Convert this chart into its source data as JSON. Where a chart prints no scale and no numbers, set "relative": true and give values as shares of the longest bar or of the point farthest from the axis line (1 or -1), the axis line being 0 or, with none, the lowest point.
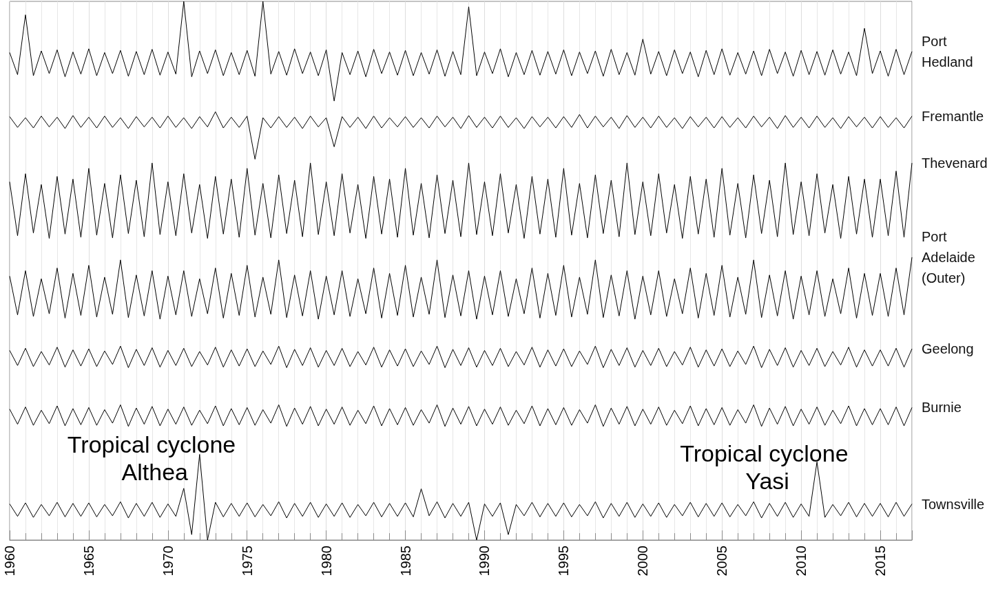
{
  "chart_data": {
    "type": "line",
    "relative": true,
    "grid": "x",
    "marker": "none",
    "line_style": "solid",
    "xlim": [
      1960,
      2017
    ],
    "xticks": [
      1960,
      1965,
      1970,
      1975,
      1980,
      1985,
      1990,
      1995,
      2000,
      2005,
      2010,
      2015
    ],
    "x": [
      1960,
      1960.5,
      1961,
      1961.5,
      1962,
      1962.5,
      1963,
      1963.5,
      1964,
      1964.5,
      1965,
      1965.5,
      1966,
      1966.5,
      1967,
      1967.5,
      1968,
      1968.5,
      1969,
      1969.5,
      1970,
      1970.5,
      1971,
      1971.5,
      1972,
      1972.5,
      1973,
      1973.5,
      1974,
      1974.5,
      1975,
      1975.5,
      1976,
      1976.5,
      1977,
      1977.5,
      1978,
      1978.5,
      1979,
      1979.5,
      1980,
      1980.5,
      1981,
      1981.5,
      1982,
      1982.5,
      1983,
      1983.5,
      1984,
      1984.5,
      1985,
      1985.5,
      1986,
      1986.5,
      1987,
      1987.5,
      1988,
      1988.5,
      1989,
      1989.5,
      1990,
      1990.5,
      1991,
      1991.5,
      1992,
      1992.5,
      1993,
      1993.5,
      1994,
      1994.5,
      1995,
      1995.5,
      1996,
      1996.5,
      1997,
      1997.5,
      1998,
      1998.5,
      1999,
      1999.5,
      2000,
      2000.5,
      2001,
      2001.5,
      2002,
      2002.5,
      2003,
      2003.5,
      2004,
      2004.5,
      2005,
      2005.5,
      2006,
      2006.5,
      2007,
      2007.5,
      2008,
      2008.5,
      2009,
      2009.5,
      2010,
      2010.5,
      2011,
      2011.5,
      2012,
      2012.5,
      2013,
      2013.5,
      2014,
      2014.5,
      2015,
      2015.5,
      2016,
      2016.5,
      2017
    ],
    "series": [
      {
        "name": "Port Hedland",
        "color": "#000000",
        "values": [
          0.905,
          0.864,
          0.975,
          0.862,
          0.908,
          0.866,
          0.91,
          0.86,
          0.906,
          0.865,
          0.912,
          0.862,
          0.905,
          0.866,
          0.909,
          0.861,
          0.907,
          0.864,
          0.911,
          0.863,
          0.906,
          0.865,
          1.0,
          0.86,
          0.908,
          0.866,
          0.91,
          0.862,
          0.905,
          0.864,
          0.909,
          0.861,
          1.0,
          0.865,
          0.907,
          0.863,
          0.912,
          0.866,
          0.906,
          0.862,
          0.91,
          0.815,
          0.905,
          0.864,
          0.908,
          0.86,
          0.911,
          0.866,
          0.906,
          0.863,
          0.909,
          0.862,
          0.905,
          0.865,
          0.91,
          0.861,
          0.907,
          0.864,
          0.99,
          0.862,
          0.906,
          0.866,
          0.912,
          0.86,
          0.905,
          0.864,
          0.909,
          0.863,
          0.907,
          0.865,
          0.91,
          0.862,
          0.906,
          0.866,
          0.908,
          0.861,
          0.911,
          0.864,
          0.905,
          0.863,
          0.93,
          0.865,
          0.907,
          0.862,
          0.91,
          0.866,
          0.906,
          0.86,
          0.909,
          0.864,
          0.912,
          0.863,
          0.905,
          0.865,
          0.908,
          0.862,
          0.911,
          0.866,
          0.906,
          0.861,
          0.909,
          0.864,
          0.907,
          0.863,
          0.91,
          0.865,
          0.906,
          0.862,
          0.95,
          0.866,
          0.908,
          0.861,
          0.911,
          0.864,
          0.907
        ]
      },
      {
        "name": "Fremantle",
        "color": "#000000",
        "values": [
          0.786,
          0.766,
          0.784,
          0.765,
          0.787,
          0.767,
          0.785,
          0.764,
          0.788,
          0.766,
          0.785,
          0.765,
          0.787,
          0.766,
          0.784,
          0.764,
          0.786,
          0.767,
          0.785,
          0.765,
          0.787,
          0.766,
          0.784,
          0.764,
          0.786,
          0.767,
          0.795,
          0.765,
          0.785,
          0.766,
          0.787,
          0.707,
          0.784,
          0.765,
          0.786,
          0.766,
          0.785,
          0.764,
          0.787,
          0.767,
          0.784,
          0.73,
          0.786,
          0.766,
          0.785,
          0.764,
          0.787,
          0.765,
          0.784,
          0.767,
          0.786,
          0.766,
          0.784,
          0.765,
          0.787,
          0.767,
          0.785,
          0.764,
          0.788,
          0.766,
          0.785,
          0.765,
          0.787,
          0.766,
          0.784,
          0.764,
          0.786,
          0.767,
          0.785,
          0.765,
          0.786,
          0.766,
          0.79,
          0.765,
          0.787,
          0.767,
          0.785,
          0.764,
          0.788,
          0.766,
          0.785,
          0.765,
          0.787,
          0.766,
          0.784,
          0.764,
          0.786,
          0.767,
          0.785,
          0.765,
          0.786,
          0.766,
          0.784,
          0.765,
          0.787,
          0.767,
          0.785,
          0.764,
          0.788,
          0.766,
          0.785,
          0.765,
          0.787,
          0.766,
          0.784,
          0.764,
          0.786,
          0.767,
          0.785,
          0.765,
          0.786,
          0.766,
          0.784,
          0.765,
          0.787
        ]
      },
      {
        "name": "Thevenard",
        "color": "#000000",
        "values": [
          0.665,
          0.565,
          0.68,
          0.57,
          0.66,
          0.56,
          0.675,
          0.568,
          0.67,
          0.562,
          0.69,
          0.566,
          0.662,
          0.561,
          0.678,
          0.569,
          0.668,
          0.563,
          0.7,
          0.567,
          0.665,
          0.565,
          0.68,
          0.57,
          0.66,
          0.56,
          0.675,
          0.568,
          0.67,
          0.562,
          0.69,
          0.566,
          0.662,
          0.561,
          0.678,
          0.569,
          0.668,
          0.563,
          0.7,
          0.567,
          0.665,
          0.565,
          0.68,
          0.57,
          0.66,
          0.56,
          0.675,
          0.568,
          0.67,
          0.562,
          0.69,
          0.566,
          0.662,
          0.561,
          0.678,
          0.569,
          0.668,
          0.563,
          0.7,
          0.567,
          0.665,
          0.565,
          0.68,
          0.57,
          0.66,
          0.56,
          0.675,
          0.568,
          0.67,
          0.562,
          0.69,
          0.566,
          0.662,
          0.561,
          0.678,
          0.569,
          0.668,
          0.563,
          0.7,
          0.567,
          0.665,
          0.565,
          0.68,
          0.57,
          0.66,
          0.56,
          0.675,
          0.568,
          0.67,
          0.562,
          0.69,
          0.566,
          0.662,
          0.561,
          0.678,
          0.569,
          0.668,
          0.563,
          0.7,
          0.567,
          0.665,
          0.565,
          0.68,
          0.57,
          0.66,
          0.56,
          0.675,
          0.568,
          0.67,
          0.562,
          0.67,
          0.565,
          0.685,
          0.562,
          0.7
        ]
      },
      {
        "name": "Port Adelaide (Outer)",
        "color": "#000000",
        "values": [
          0.49,
          0.418,
          0.5,
          0.415,
          0.485,
          0.42,
          0.505,
          0.412,
          0.495,
          0.417,
          0.51,
          0.414,
          0.488,
          0.419,
          0.52,
          0.413,
          0.492,
          0.416,
          0.5,
          0.41,
          0.49,
          0.418,
          0.5,
          0.415,
          0.485,
          0.42,
          0.505,
          0.412,
          0.495,
          0.417,
          0.51,
          0.414,
          0.488,
          0.419,
          0.52,
          0.413,
          0.492,
          0.416,
          0.5,
          0.41,
          0.49,
          0.418,
          0.5,
          0.415,
          0.485,
          0.42,
          0.505,
          0.412,
          0.495,
          0.417,
          0.51,
          0.414,
          0.488,
          0.419,
          0.52,
          0.413,
          0.492,
          0.416,
          0.5,
          0.41,
          0.49,
          0.418,
          0.5,
          0.415,
          0.485,
          0.42,
          0.505,
          0.412,
          0.495,
          0.417,
          0.51,
          0.414,
          0.488,
          0.419,
          0.52,
          0.413,
          0.492,
          0.416,
          0.5,
          0.41,
          0.49,
          0.418,
          0.5,
          0.415,
          0.485,
          0.42,
          0.505,
          0.412,
          0.495,
          0.417,
          0.51,
          0.414,
          0.488,
          0.419,
          0.52,
          0.413,
          0.492,
          0.416,
          0.5,
          0.41,
          0.49,
          0.418,
          0.5,
          0.415,
          0.485,
          0.42,
          0.505,
          0.412,
          0.495,
          0.417,
          0.495,
          0.415,
          0.505,
          0.418,
          0.525
        ]
      },
      {
        "name": "Geelong",
        "color": "#000000",
        "values": [
          0.352,
          0.324,
          0.356,
          0.322,
          0.35,
          0.325,
          0.358,
          0.321,
          0.353,
          0.323,
          0.355,
          0.322,
          0.351,
          0.326,
          0.36,
          0.32,
          0.354,
          0.324,
          0.357,
          0.321,
          0.352,
          0.324,
          0.356,
          0.322,
          0.35,
          0.325,
          0.358,
          0.321,
          0.353,
          0.323,
          0.355,
          0.322,
          0.351,
          0.326,
          0.36,
          0.32,
          0.354,
          0.324,
          0.357,
          0.321,
          0.352,
          0.324,
          0.356,
          0.322,
          0.35,
          0.325,
          0.358,
          0.321,
          0.353,
          0.323,
          0.355,
          0.322,
          0.351,
          0.326,
          0.36,
          0.32,
          0.354,
          0.324,
          0.357,
          0.321,
          0.352,
          0.324,
          0.356,
          0.322,
          0.35,
          0.325,
          0.358,
          0.321,
          0.353,
          0.323,
          0.355,
          0.322,
          0.351,
          0.326,
          0.36,
          0.32,
          0.354,
          0.324,
          0.357,
          0.321,
          0.352,
          0.324,
          0.356,
          0.322,
          0.35,
          0.325,
          0.358,
          0.321,
          0.353,
          0.323,
          0.355,
          0.322,
          0.351,
          0.326,
          0.36,
          0.32,
          0.354,
          0.324,
          0.357,
          0.321,
          0.352,
          0.324,
          0.356,
          0.322,
          0.35,
          0.325,
          0.358,
          0.321,
          0.353,
          0.323,
          0.353,
          0.323,
          0.356,
          0.321,
          0.355
        ]
      },
      {
        "name": "Burnie",
        "color": "#000000",
        "values": [
          0.243,
          0.215,
          0.247,
          0.213,
          0.241,
          0.216,
          0.249,
          0.212,
          0.244,
          0.214,
          0.246,
          0.213,
          0.242,
          0.217,
          0.251,
          0.211,
          0.245,
          0.215,
          0.248,
          0.212,
          0.243,
          0.215,
          0.247,
          0.213,
          0.241,
          0.216,
          0.249,
          0.212,
          0.244,
          0.214,
          0.246,
          0.213,
          0.242,
          0.217,
          0.251,
          0.211,
          0.245,
          0.215,
          0.248,
          0.212,
          0.243,
          0.215,
          0.247,
          0.213,
          0.241,
          0.216,
          0.249,
          0.212,
          0.244,
          0.214,
          0.246,
          0.213,
          0.242,
          0.217,
          0.251,
          0.211,
          0.245,
          0.215,
          0.248,
          0.212,
          0.243,
          0.215,
          0.247,
          0.213,
          0.241,
          0.216,
          0.249,
          0.212,
          0.244,
          0.214,
          0.246,
          0.213,
          0.242,
          0.217,
          0.251,
          0.211,
          0.245,
          0.215,
          0.248,
          0.212,
          0.243,
          0.215,
          0.247,
          0.213,
          0.241,
          0.216,
          0.249,
          0.212,
          0.244,
          0.214,
          0.246,
          0.213,
          0.242,
          0.217,
          0.251,
          0.211,
          0.245,
          0.215,
          0.248,
          0.212,
          0.243,
          0.215,
          0.247,
          0.213,
          0.241,
          0.216,
          0.249,
          0.212,
          0.244,
          0.214,
          0.244,
          0.214,
          0.247,
          0.212,
          0.246
        ]
      },
      {
        "name": "Townsville",
        "color": "#000000",
        "values": [
          0.067,
          0.044,
          0.069,
          0.042,
          0.066,
          0.045,
          0.07,
          0.043,
          0.068,
          0.044,
          0.069,
          0.043,
          0.066,
          0.045,
          0.071,
          0.041,
          0.068,
          0.044,
          0.07,
          0.042,
          0.067,
          0.044,
          0.096,
          0.01,
          0.159,
          0.0,
          0.07,
          0.043,
          0.068,
          0.044,
          0.069,
          0.043,
          0.066,
          0.045,
          0.071,
          0.041,
          0.068,
          0.044,
          0.07,
          0.042,
          0.067,
          0.044,
          0.069,
          0.042,
          0.066,
          0.045,
          0.07,
          0.043,
          0.068,
          0.044,
          0.069,
          0.043,
          0.095,
          0.045,
          0.071,
          0.041,
          0.068,
          0.044,
          0.07,
          0.0,
          0.067,
          0.044,
          0.069,
          0.01,
          0.066,
          0.045,
          0.07,
          0.043,
          0.068,
          0.044,
          0.069,
          0.043,
          0.066,
          0.045,
          0.071,
          0.041,
          0.068,
          0.044,
          0.07,
          0.042,
          0.067,
          0.044,
          0.069,
          0.042,
          0.066,
          0.045,
          0.07,
          0.043,
          0.068,
          0.044,
          0.069,
          0.043,
          0.066,
          0.045,
          0.071,
          0.041,
          0.068,
          0.044,
          0.07,
          0.042,
          0.067,
          0.044,
          0.145,
          0.042,
          0.066,
          0.045,
          0.07,
          0.043,
          0.068,
          0.044,
          0.068,
          0.043,
          0.07,
          0.044,
          0.067
        ]
      }
    ],
    "annotations": [
      {
        "text": "Tropical cyclone Althea",
        "x": 1972,
        "y": 0.159
      },
      {
        "text": "Tropical cyclone Yasi",
        "x": 2011,
        "y": 0.145
      }
    ]
  }
}
